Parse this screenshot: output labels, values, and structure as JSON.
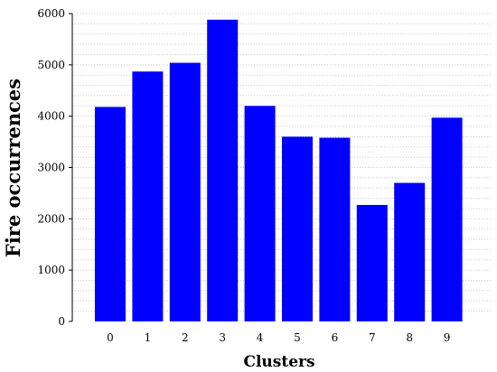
{
  "chart_data": {
    "type": "bar",
    "categories": [
      "0",
      "1",
      "2",
      "3",
      "4",
      "5",
      "6",
      "7",
      "8",
      "9"
    ],
    "values": [
      4180,
      4870,
      5040,
      5880,
      4200,
      3600,
      3580,
      2270,
      2700,
      3970
    ],
    "xlabel": "Clusters",
    "ylabel": "Fire occurrences",
    "ylim": [
      0,
      6000
    ],
    "y_ticks": [
      0,
      1000,
      2000,
      3000,
      4000,
      5000,
      6000
    ],
    "minor_y_step": 200,
    "grid": true,
    "bar_color": "#0000ff"
  }
}
